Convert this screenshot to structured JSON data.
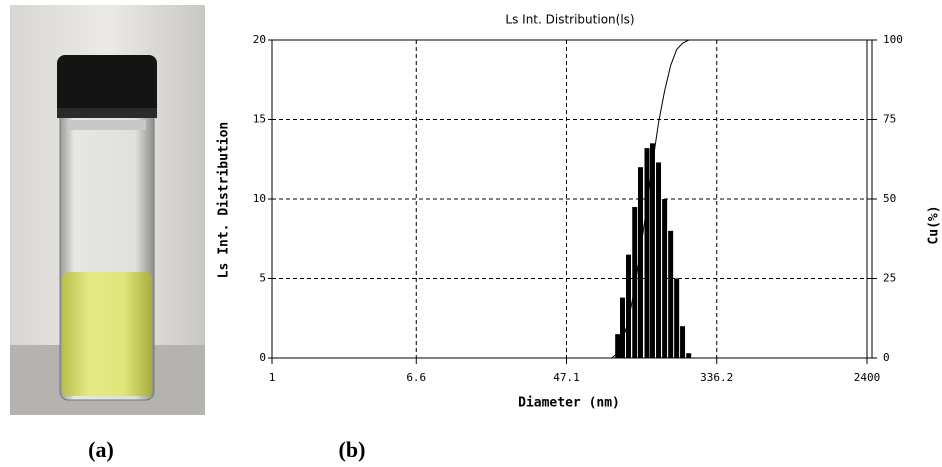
{
  "figure": {
    "panel_labels": [
      "(a)",
      "(b)"
    ]
  },
  "chart_data": {
    "type": "bar",
    "title": "Ls Int. Distribution(ls)",
    "x_label": "Diameter (nm)",
    "y_label": "Ls Int. Distribution",
    "y2_label": "Cu(%)",
    "x_scale": "log",
    "xlim": [
      1,
      2400
    ],
    "xticks": [
      1,
      6.6,
      47.1,
      336.2,
      2400
    ],
    "ylim": [
      0,
      20
    ],
    "yticks": [
      0,
      5,
      10,
      15,
      20
    ],
    "y2lim": [
      0,
      100
    ],
    "y2ticks": [
      0,
      25,
      50,
      75,
      100
    ],
    "grid": true,
    "series": [
      {
        "type": "bar",
        "color": "#000000",
        "x": [
          92,
          98,
          106,
          115,
          124,
          135,
          145,
          157,
          170,
          184,
          199,
          215,
          233
        ],
        "values": [
          1.5,
          3.8,
          6.5,
          9.5,
          12,
          13.2,
          13.5,
          12.3,
          10,
          8,
          5,
          2,
          0.3
        ]
      },
      {
        "type": "line",
        "color": "#000000",
        "axis": "y2",
        "x": [
          85,
          92,
          98,
          106,
          115,
          124,
          135,
          145,
          157,
          170,
          184,
          199,
          215,
          233
        ],
        "values": [
          0,
          1.5,
          5.4,
          12,
          22,
          34,
          48,
          61,
          74,
          84,
          92,
          97,
          99,
          100
        ]
      }
    ]
  }
}
